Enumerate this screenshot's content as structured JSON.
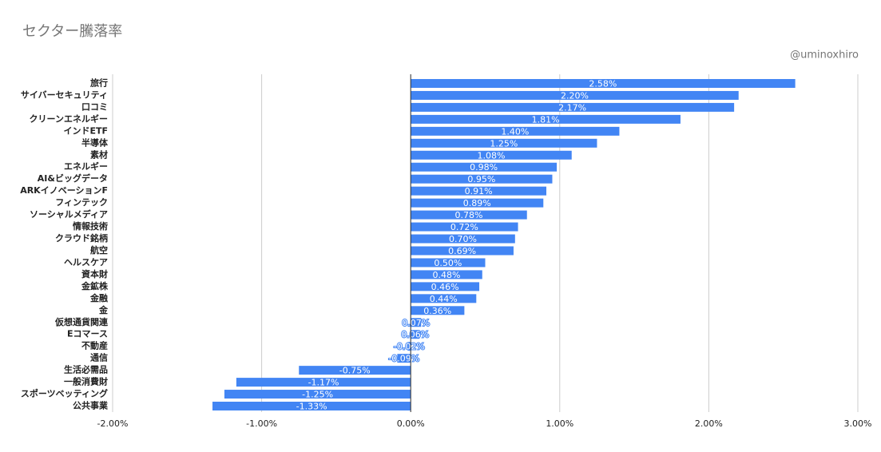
{
  "chart_data": {
    "type": "bar",
    "orientation": "horizontal",
    "title": "セクター騰落率",
    "annotation": "@uminoxhiro",
    "categories": [
      "旅行",
      "サイバーセキュリティ",
      "口コミ",
      "クリーンエネルギー",
      "インドETF",
      "半導体",
      "素材",
      "エネルギー",
      "AI&ビッグデータ",
      "ARKイノベーションF",
      "フィンテック",
      "ソーシャルメディア",
      "情報技術",
      "クラウド銘柄",
      "航空",
      "ヘルスケア",
      "資本財",
      "金鉱株",
      "金融",
      "金",
      "仮想通貨関連",
      "Eコマース",
      "不動産",
      "通信",
      "生活必需品",
      "一般消費財",
      "スポーツベッティング",
      "公共事業"
    ],
    "values": [
      2.58,
      2.2,
      2.17,
      1.81,
      1.4,
      1.25,
      1.08,
      0.98,
      0.95,
      0.91,
      0.89,
      0.78,
      0.72,
      0.7,
      0.69,
      0.5,
      0.48,
      0.46,
      0.44,
      0.36,
      0.07,
      0.06,
      -0.02,
      -0.09,
      -0.75,
      -1.17,
      -1.25,
      -1.33
    ],
    "value_labels": [
      "2.58%",
      "2.20%",
      "2.17%",
      "1.81%",
      "1.40%",
      "1.25%",
      "1.08%",
      "0.98%",
      "0.95%",
      "0.91%",
      "0.89%",
      "0.78%",
      "0.72%",
      "0.70%",
      "0.69%",
      "0.50%",
      "0.48%",
      "0.46%",
      "0.44%",
      "0.36%",
      "0.07%",
      "0.06%",
      "-0.02%",
      "-0.09%",
      "-0.75%",
      "-1.17%",
      "-1.25%",
      "-1.33%"
    ],
    "color": "#4285f4",
    "xlim": [
      -2,
      3
    ],
    "xticks": [
      {
        "value": -2,
        "label": "-2.00%"
      },
      {
        "value": -1,
        "label": "-1.00%"
      },
      {
        "value": 0,
        "label": "0.00%"
      },
      {
        "value": 1,
        "label": "1.00%"
      },
      {
        "value": 2,
        "label": "2.00%"
      },
      {
        "value": 3,
        "label": "3.00%"
      }
    ],
    "grid": true
  }
}
